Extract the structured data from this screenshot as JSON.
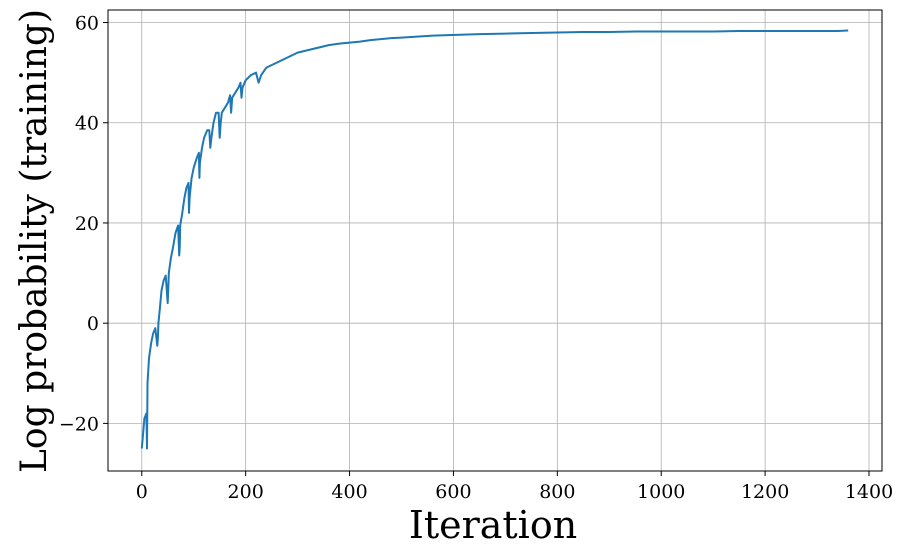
{
  "chart_data": {
    "type": "line",
    "xlabel": "Iteration",
    "ylabel": "Log probability (training)",
    "xlim": [
      -65,
      1425
    ],
    "ylim": [
      -29.5,
      62.5
    ],
    "x_ticks": [
      0,
      200,
      400,
      600,
      800,
      1000,
      1200,
      1400
    ],
    "y_ticks": [
      -20,
      0,
      20,
      40,
      60
    ],
    "x_tick_labels": [
      "0",
      "200",
      "400",
      "600",
      "800",
      "1000",
      "1200",
      "1400"
    ],
    "y_tick_labels": [
      "−20",
      "0",
      "20",
      "40",
      "60"
    ],
    "grid": true,
    "series": [
      {
        "color": "#1f77b4",
        "x": [
          0,
          5,
          9,
          10,
          11,
          14,
          18,
          22,
          26,
          30,
          31,
          32,
          35,
          38,
          42,
          46,
          50,
          51,
          52,
          56,
          60,
          65,
          70,
          72,
          73,
          74,
          78,
          82,
          86,
          90,
          91,
          92,
          96,
          100,
          106,
          110,
          111,
          112,
          116,
          120,
          126,
          130,
          132,
          134,
          138,
          143,
          148,
          150,
          152,
          154,
          160,
          166,
          170,
          172,
          174,
          180,
          186,
          190,
          192,
          194,
          200,
          210,
          220,
          225,
          230,
          240,
          250,
          260,
          270,
          280,
          290,
          300,
          320,
          340,
          360,
          380,
          400,
          420,
          440,
          460,
          480,
          500,
          530,
          560,
          590,
          620,
          650,
          700,
          750,
          800,
          850,
          900,
          950,
          1000,
          1050,
          1100,
          1150,
          1200,
          1250,
          1300,
          1340,
          1360
        ],
        "values": [
          -25,
          -19,
          -18,
          -25,
          -12,
          -7,
          -4,
          -2,
          -1,
          -4.5,
          -3,
          0,
          3,
          6.5,
          8.5,
          9.5,
          4,
          7,
          10,
          13,
          15,
          18,
          19.5,
          13.5,
          15,
          19.5,
          22,
          25,
          27,
          28,
          22,
          25,
          29,
          31,
          33,
          34,
          29,
          32,
          35,
          37,
          38.5,
          38.5,
          35,
          37,
          40,
          42,
          42,
          37,
          40,
          42,
          43,
          44,
          45.5,
          42,
          45,
          46,
          47,
          48,
          45,
          47,
          48.5,
          49.5,
          50,
          48,
          49.5,
          51,
          51.5,
          52,
          52.5,
          53,
          53.5,
          54,
          54.5,
          55,
          55.5,
          55.8,
          56,
          56.2,
          56.5,
          56.7,
          56.9,
          57,
          57.2,
          57.4,
          57.5,
          57.6,
          57.7,
          57.8,
          57.9,
          58,
          58.1,
          58.1,
          58.2,
          58.2,
          58.2,
          58.2,
          58.3,
          58.3,
          58.3,
          58.3,
          58.3,
          58.4
        ]
      }
    ]
  }
}
